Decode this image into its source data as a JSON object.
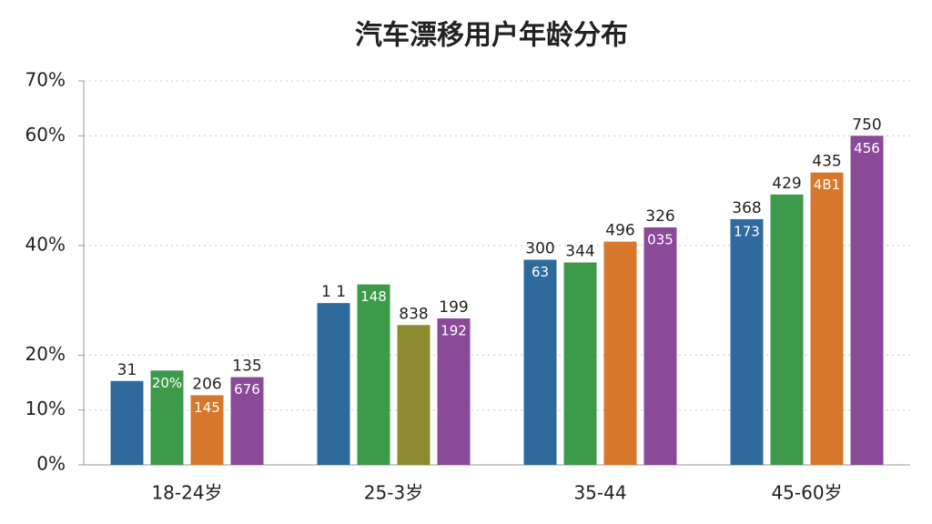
{
  "chart_data": {
    "type": "bar",
    "title": "汽车漂移用户年龄分布",
    "categories": [
      "18-24岁",
      "25-3岁",
      "35-44",
      "45-60岁"
    ],
    "series": [
      {
        "color": "#2f6a9c",
        "values": [
          15.3,
          29.5,
          37.4,
          44.8
        ],
        "top_labels": [
          "31",
          "1 1",
          "300",
          "368"
        ],
        "inner_labels": [
          null,
          null,
          "63",
          "173"
        ]
      },
      {
        "color": "#3d9a4b",
        "values": [
          17.2,
          32.9,
          36.9,
          49.3
        ],
        "top_labels": [
          null,
          null,
          "344",
          "429"
        ],
        "inner_labels": [
          "20%",
          "148",
          null,
          null
        ]
      },
      {
        "color": "#d8772a",
        "colors": [
          "#d8772a",
          "#8c8b2f",
          "#d8772a",
          "#d8772a"
        ],
        "values": [
          12.7,
          25.5,
          40.7,
          53.3
        ],
        "top_labels": [
          "206",
          "838",
          "496",
          "435"
        ],
        "inner_labels": [
          "145",
          null,
          null,
          "4B1"
        ]
      },
      {
        "color": "#8a4a98",
        "values": [
          16,
          26.7,
          43.3,
          60
        ],
        "top_labels": [
          "135",
          "199",
          "326",
          "750"
        ],
        "inner_labels": [
          "676",
          "192",
          "035",
          "456"
        ]
      }
    ],
    "ylim": [
      0,
      70
    ],
    "yticks": [
      {
        "value": 0,
        "label": "0%"
      },
      {
        "value": 10,
        "label": "10%"
      },
      {
        "value": 20,
        "label": "20%"
      },
      {
        "value": 40,
        "label": "40%"
      },
      {
        "value": 60,
        "label": "60%"
      },
      {
        "value": 70,
        "label": "70%"
      }
    ],
    "grid": true
  }
}
